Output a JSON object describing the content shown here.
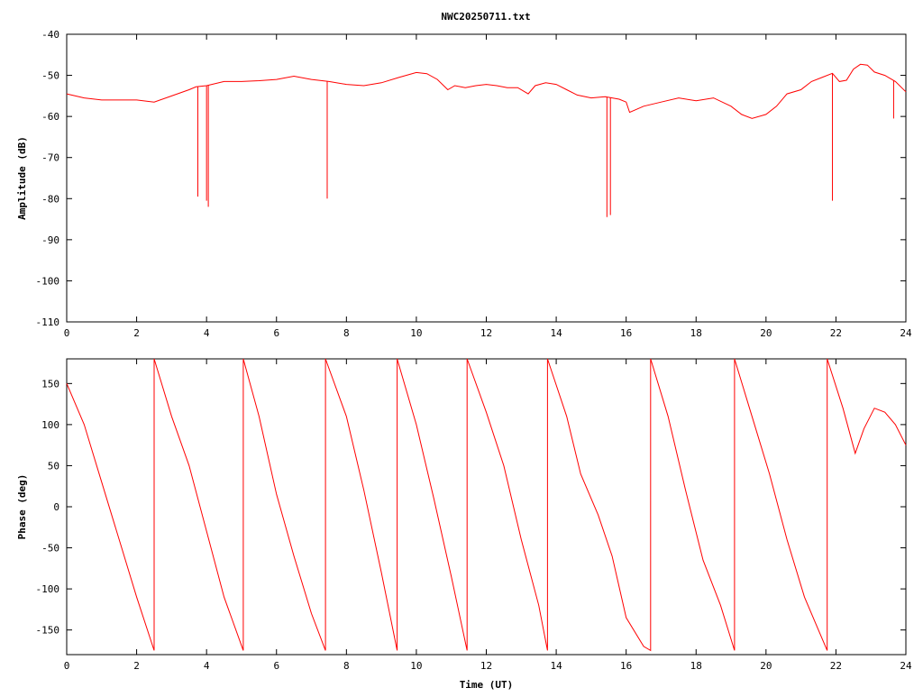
{
  "title": "NWC20250711.txt",
  "colors": {
    "series": "#ff0000",
    "axis": "#000000",
    "background": "#ffffff"
  },
  "chart_data": [
    {
      "type": "line",
      "title": "NWC20250711.txt",
      "xlabel": "",
      "ylabel": "Amplitude (dB)",
      "xlim": [
        0,
        24
      ],
      "ylim": [
        -110,
        -40
      ],
      "xticks": [
        0,
        2,
        4,
        6,
        8,
        10,
        12,
        14,
        16,
        18,
        20,
        22,
        24
      ],
      "yticks": [
        -110,
        -100,
        -90,
        -80,
        -70,
        -60,
        -50,
        -40
      ],
      "grid": false,
      "legend": "none",
      "series": [
        {
          "x": [
            0,
            0.5,
            1,
            1.5,
            2,
            2.5,
            3,
            3.5,
            3.7,
            4,
            4.5,
            5,
            5.5,
            6,
            6.5,
            7,
            7.5,
            8,
            8.5,
            9,
            9.5,
            10,
            10.3,
            10.6,
            10.9,
            11.1,
            11.4,
            11.7,
            12,
            12.3,
            12.6,
            12.9,
            13.2,
            13.4,
            13.7,
            14,
            14.3,
            14.6,
            15,
            15.4,
            15.8,
            16,
            16.1,
            16.5,
            17,
            17.5,
            18,
            18.5,
            19,
            19.3,
            19.6,
            20,
            20.3,
            20.6,
            21,
            21.3,
            21.6,
            21.9,
            22.1,
            22.3,
            22.5,
            22.7,
            22.9,
            23.1,
            23.4,
            23.7,
            24
          ],
          "y": [
            -54.5,
            -55.5,
            -56,
            -56,
            -56,
            -56.5,
            -55,
            -53.5,
            -52.8,
            -52.5,
            -51.5,
            -51.5,
            -51.3,
            -51,
            -50.2,
            -51,
            -51.5,
            -52.2,
            -52.5,
            -51.8,
            -50.5,
            -49.3,
            -49.6,
            -51,
            -53.5,
            -52.5,
            -53,
            -52.5,
            -52.2,
            -52.5,
            -53,
            -53,
            -54.5,
            -52.5,
            -51.8,
            -52.2,
            -53.5,
            -54.8,
            -55.5,
            -55.2,
            -55.8,
            -56.5,
            -59,
            -57.5,
            -56.5,
            -55.5,
            -56.2,
            -55.5,
            -57.5,
            -59.5,
            -60.5,
            -59.5,
            -57.5,
            -54.5,
            -53.5,
            -51.5,
            -50.5,
            -49.5,
            -51.5,
            -51.2,
            -48.5,
            -47.3,
            -47.5,
            -49.2,
            -50,
            -51.5,
            -54
          ]
        },
        {
          "x": [
            3.75,
            4.0,
            4.05,
            7.45,
            15.45,
            15.55,
            21.9,
            23.65
          ],
          "y": [
            -79.5,
            -80.5,
            -82,
            -80,
            -84.5,
            -84,
            -80.5,
            -60.5
          ]
        }
      ]
    },
    {
      "type": "line",
      "title": "",
      "xlabel": "Time (UT)",
      "ylabel": "Phase (deg)",
      "xlim": [
        0,
        24
      ],
      "ylim": [
        -180,
        180
      ],
      "xticks": [
        0,
        2,
        4,
        6,
        8,
        10,
        12,
        14,
        16,
        18,
        20,
        22,
        24
      ],
      "yticks": [
        -150,
        -100,
        -50,
        0,
        50,
        100,
        150
      ],
      "grid": false,
      "legend": "none",
      "series": [
        {
          "x": [
            0,
            0.5,
            1,
            1.5,
            2,
            2.5,
            2.5,
            3,
            3.5,
            4,
            4.5,
            5.05,
            5.05,
            5.5,
            6,
            6.5,
            7,
            7.4,
            7.4,
            8,
            8.5,
            9,
            9.45,
            9.45,
            10,
            10.5,
            11,
            11.45,
            11.45,
            12,
            12.5,
            13,
            13.5,
            13.75,
            13.75,
            14.3,
            14.7,
            15.2,
            15.6,
            16,
            16.5,
            16.7,
            16.7,
            17.2,
            17.7,
            18.2,
            18.7,
            19.1,
            19.1,
            19.6,
            20.1,
            20.6,
            21.1,
            21.5,
            21.75,
            21.75,
            22.2,
            22.55,
            22.8,
            23.1,
            23.4,
            23.7,
            24
          ],
          "y": [
            150,
            100,
            30,
            -40,
            -110,
            -175,
            180,
            110,
            50,
            -30,
            -110,
            -175,
            180,
            110,
            15,
            -60,
            -130,
            -175,
            180,
            110,
            20,
            -80,
            -175,
            180,
            100,
            10,
            -85,
            -175,
            180,
            115,
            50,
            -40,
            -120,
            -175,
            180,
            110,
            40,
            -10,
            -60,
            -135,
            -170,
            -175,
            180,
            110,
            20,
            -65,
            -120,
            -175,
            180,
            110,
            40,
            -40,
            -110,
            -150,
            -175,
            180,
            120,
            65,
            95,
            120,
            115,
            100,
            75
          ]
        }
      ]
    }
  ]
}
